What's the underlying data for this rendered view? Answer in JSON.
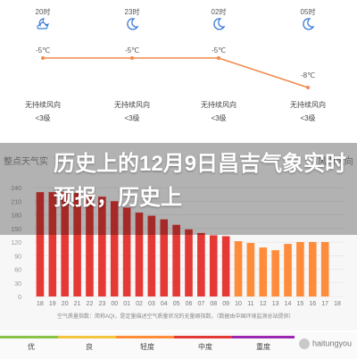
{
  "forecast": {
    "columns": [
      {
        "time": "20时",
        "icon": "cloudy-night-icon",
        "temp": "-5℃",
        "wind_dir": "无持续风向",
        "wind_level": "<3级"
      },
      {
        "time": "23时",
        "icon": "moon-icon",
        "temp": "-5℃",
        "wind_dir": "无持续风向",
        "wind_level": "<3级"
      },
      {
        "time": "02时",
        "icon": "moon-icon",
        "temp": "-5℃",
        "wind_dir": "无持续风向",
        "wind_level": "<3级"
      },
      {
        "time": "05时",
        "icon": "moon-icon",
        "temp": "-8℃",
        "wind_dir": "无持续风向",
        "wind_level": "<3级"
      }
    ]
  },
  "aqi": {
    "header_left": "整点天气实",
    "header_right": "风力风向",
    "note": "空气质量指数：简称AQI，是定量描述空气质量状况的无量纲指数。（数据由中国环境监测总站提供）"
  },
  "headline": "历史上的12月9日昌吉气象实时预报，历史上",
  "legend": {
    "items": [
      {
        "label": "优",
        "color": "#8bc34a"
      },
      {
        "label": "良",
        "color": "#f2c53d"
      },
      {
        "label": "轻度",
        "color": "#ff8c3a"
      },
      {
        "label": "中度",
        "color": "#e53935"
      },
      {
        "label": "重度",
        "color": "#9c27b0"
      }
    ]
  },
  "watermark": "haitungyou",
  "chart_data": {
    "type": "bar",
    "categories": [
      "18",
      "19",
      "20",
      "21",
      "22",
      "23",
      "00",
      "01",
      "02",
      "03",
      "04",
      "05",
      "06",
      "07",
      "08",
      "09",
      "10",
      "11",
      "12",
      "13",
      "14",
      "15",
      "16",
      "17",
      "18"
    ],
    "values": [
      230,
      230,
      230,
      228,
      226,
      220,
      210,
      196,
      185,
      178,
      170,
      158,
      148,
      140,
      135,
      133,
      122,
      118,
      108,
      102,
      116,
      120,
      120,
      120,
      0
    ],
    "bar_colors": [
      "#e53935",
      "#e53935",
      "#e53935",
      "#e53935",
      "#e53935",
      "#e53935",
      "#e53935",
      "#e53935",
      "#e53935",
      "#e53935",
      "#e53935",
      "#e53935",
      "#e53935",
      "#e53935",
      "#e53935",
      "#e53935",
      "#ff8c3a",
      "#ff8c3a",
      "#ff8c3a",
      "#ff8c3a",
      "#ff8c3a",
      "#ff8c3a",
      "#ff8c3a",
      "#ff8c3a",
      "#ff8c3a"
    ],
    "yticks": [
      "0",
      "30",
      "60",
      "90",
      "120",
      "150",
      "180",
      "210",
      "240"
    ],
    "ylim": [
      0,
      250
    ]
  }
}
